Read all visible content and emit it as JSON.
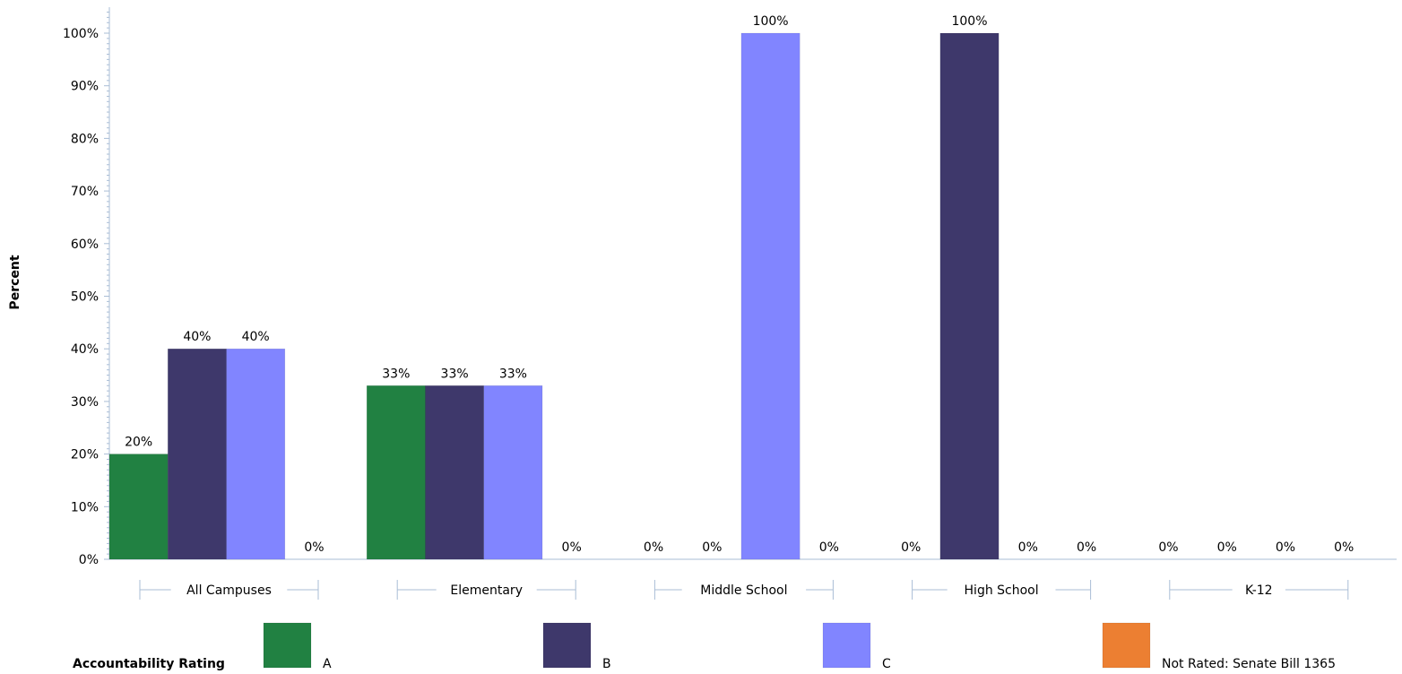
{
  "chart_data": {
    "type": "bar",
    "ylabel": "Percent",
    "xlabel": "",
    "ylim": [
      0,
      100
    ],
    "y_ticks": [
      "0%",
      "10%",
      "20%",
      "30%",
      "40%",
      "50%",
      "60%",
      "70%",
      "80%",
      "90%",
      "100%"
    ],
    "categories": [
      "All Campuses",
      "Elementary",
      "Middle School",
      "High School",
      "K-12"
    ],
    "series": [
      {
        "name": "A",
        "color": "#218142",
        "values": [
          20,
          33,
          0,
          0,
          0
        ]
      },
      {
        "name": "B",
        "color": "#3e386b",
        "values": [
          40,
          33,
          0,
          100,
          0
        ]
      },
      {
        "name": "C",
        "color": "#8185ff",
        "values": [
          40,
          33,
          100,
          0,
          0
        ]
      },
      {
        "name": "Not Rated: Senate Bill 1365",
        "color": "#ec7f32",
        "values": [
          0,
          0,
          0,
          0,
          0
        ]
      }
    ],
    "legend_title": "Accountability Rating",
    "legend_position": "bottom",
    "grid": false
  }
}
